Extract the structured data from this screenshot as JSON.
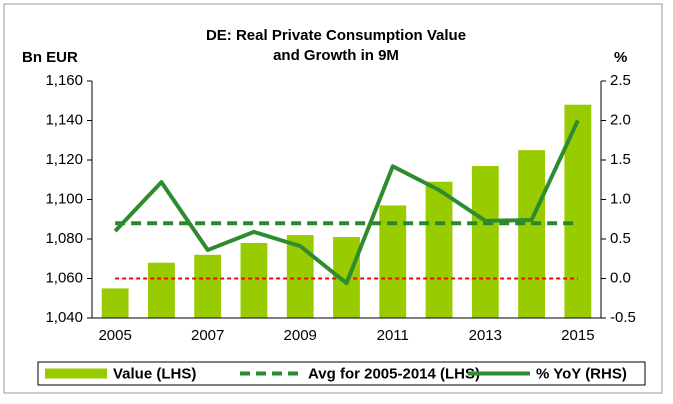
{
  "chart_data": {
    "type": "bar_line",
    "title": [
      "DE: Real Private Consumption Value",
      "and Growth in 9M"
    ],
    "y_label": "Bn EUR",
    "y2_label": "%",
    "categories": [
      "2005",
      null,
      "2007",
      null,
      "2009",
      null,
      "2011",
      null,
      "2013",
      null,
      "2015"
    ],
    "series": [
      {
        "name": "Value (LHS)",
        "type": "bar",
        "color": "#99cc00",
        "axis": "y",
        "values": [
          1055,
          1068,
          1072,
          1078,
          1082,
          1081,
          1097,
          1109,
          1117,
          1125,
          1148
        ]
      },
      {
        "name": "Avg for 2005-2014 (LHS)",
        "type": "dashed-line",
        "color": "#2a8a2a",
        "axis": "y",
        "values": [
          1088,
          1088,
          1088,
          1088,
          1088,
          1088,
          1088,
          1088,
          1088,
          1088,
          1088
        ]
      },
      {
        "name": "% YoY (RHS)",
        "type": "line",
        "color": "#2e8b2e",
        "axis": "y2",
        "values": [
          0.6,
          1.22,
          0.36,
          0.59,
          0.41,
          -0.06,
          1.42,
          1.12,
          0.73,
          0.74,
          2.0
        ]
      }
    ],
    "reference_lines": [
      {
        "value": 0,
        "axis": "y2",
        "color": "#ff0000"
      }
    ],
    "ylim": [
      1040,
      1160
    ],
    "yticks": [
      {
        "value": 1040,
        "label": "1,040"
      },
      {
        "value": 1060,
        "label": "1,060"
      },
      {
        "value": 1080,
        "label": "1,080"
      },
      {
        "value": 1100,
        "label": "1,100"
      },
      {
        "value": 1120,
        "label": "1,120"
      },
      {
        "value": 1140,
        "label": "1,140"
      },
      {
        "value": 1160,
        "label": "1,160"
      }
    ],
    "y2lim": [
      -0.5,
      2.5
    ],
    "y2ticks": [
      -0.5,
      {
        "value": 0,
        "label": "0.0"
      },
      0.5,
      {
        "value": 1,
        "label": "1.0"
      },
      1.5,
      {
        "value": 2,
        "label": "2.0"
      },
      2.5
    ]
  }
}
